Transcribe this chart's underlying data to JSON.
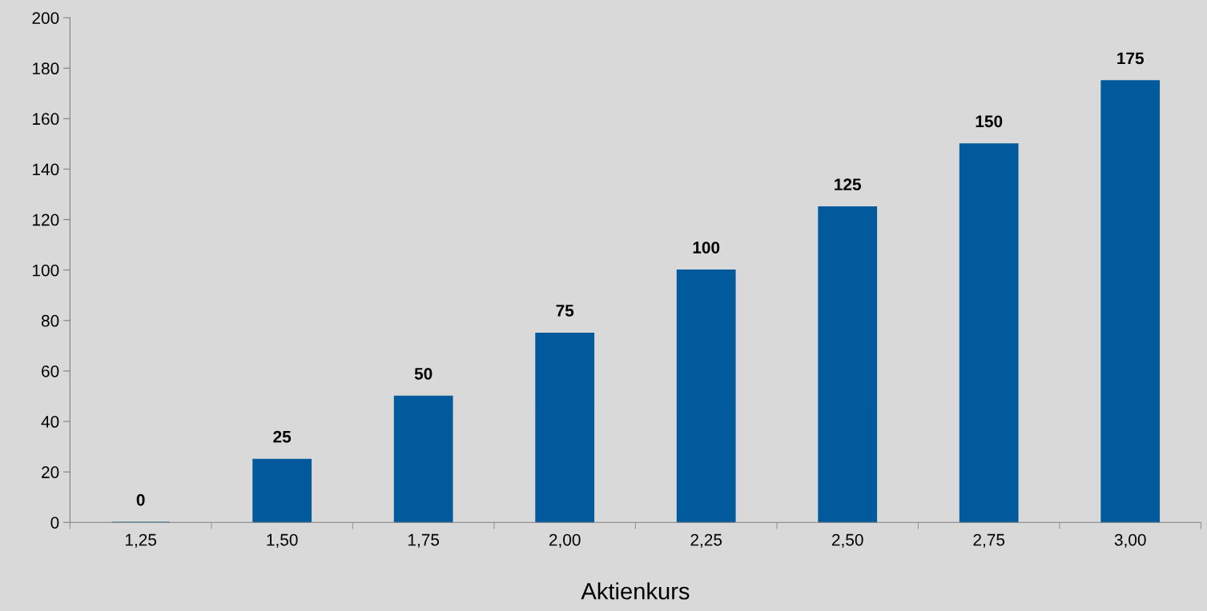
{
  "chart_data": {
    "type": "bar",
    "xlabel": "Aktienkurs",
    "categories": [
      "1,25",
      "1,50",
      "1,75",
      "2,00",
      "2,25",
      "2,50",
      "2,75",
      "3,00"
    ],
    "values": [
      0,
      25,
      50,
      75,
      100,
      125,
      150,
      175
    ],
    "color": "#005a9c",
    "ylim": [
      0,
      200
    ],
    "yticks": [
      0,
      20,
      40,
      60,
      80,
      100,
      120,
      140,
      160,
      180,
      200
    ],
    "data_labels": true,
    "grid": false,
    "legend": false
  }
}
